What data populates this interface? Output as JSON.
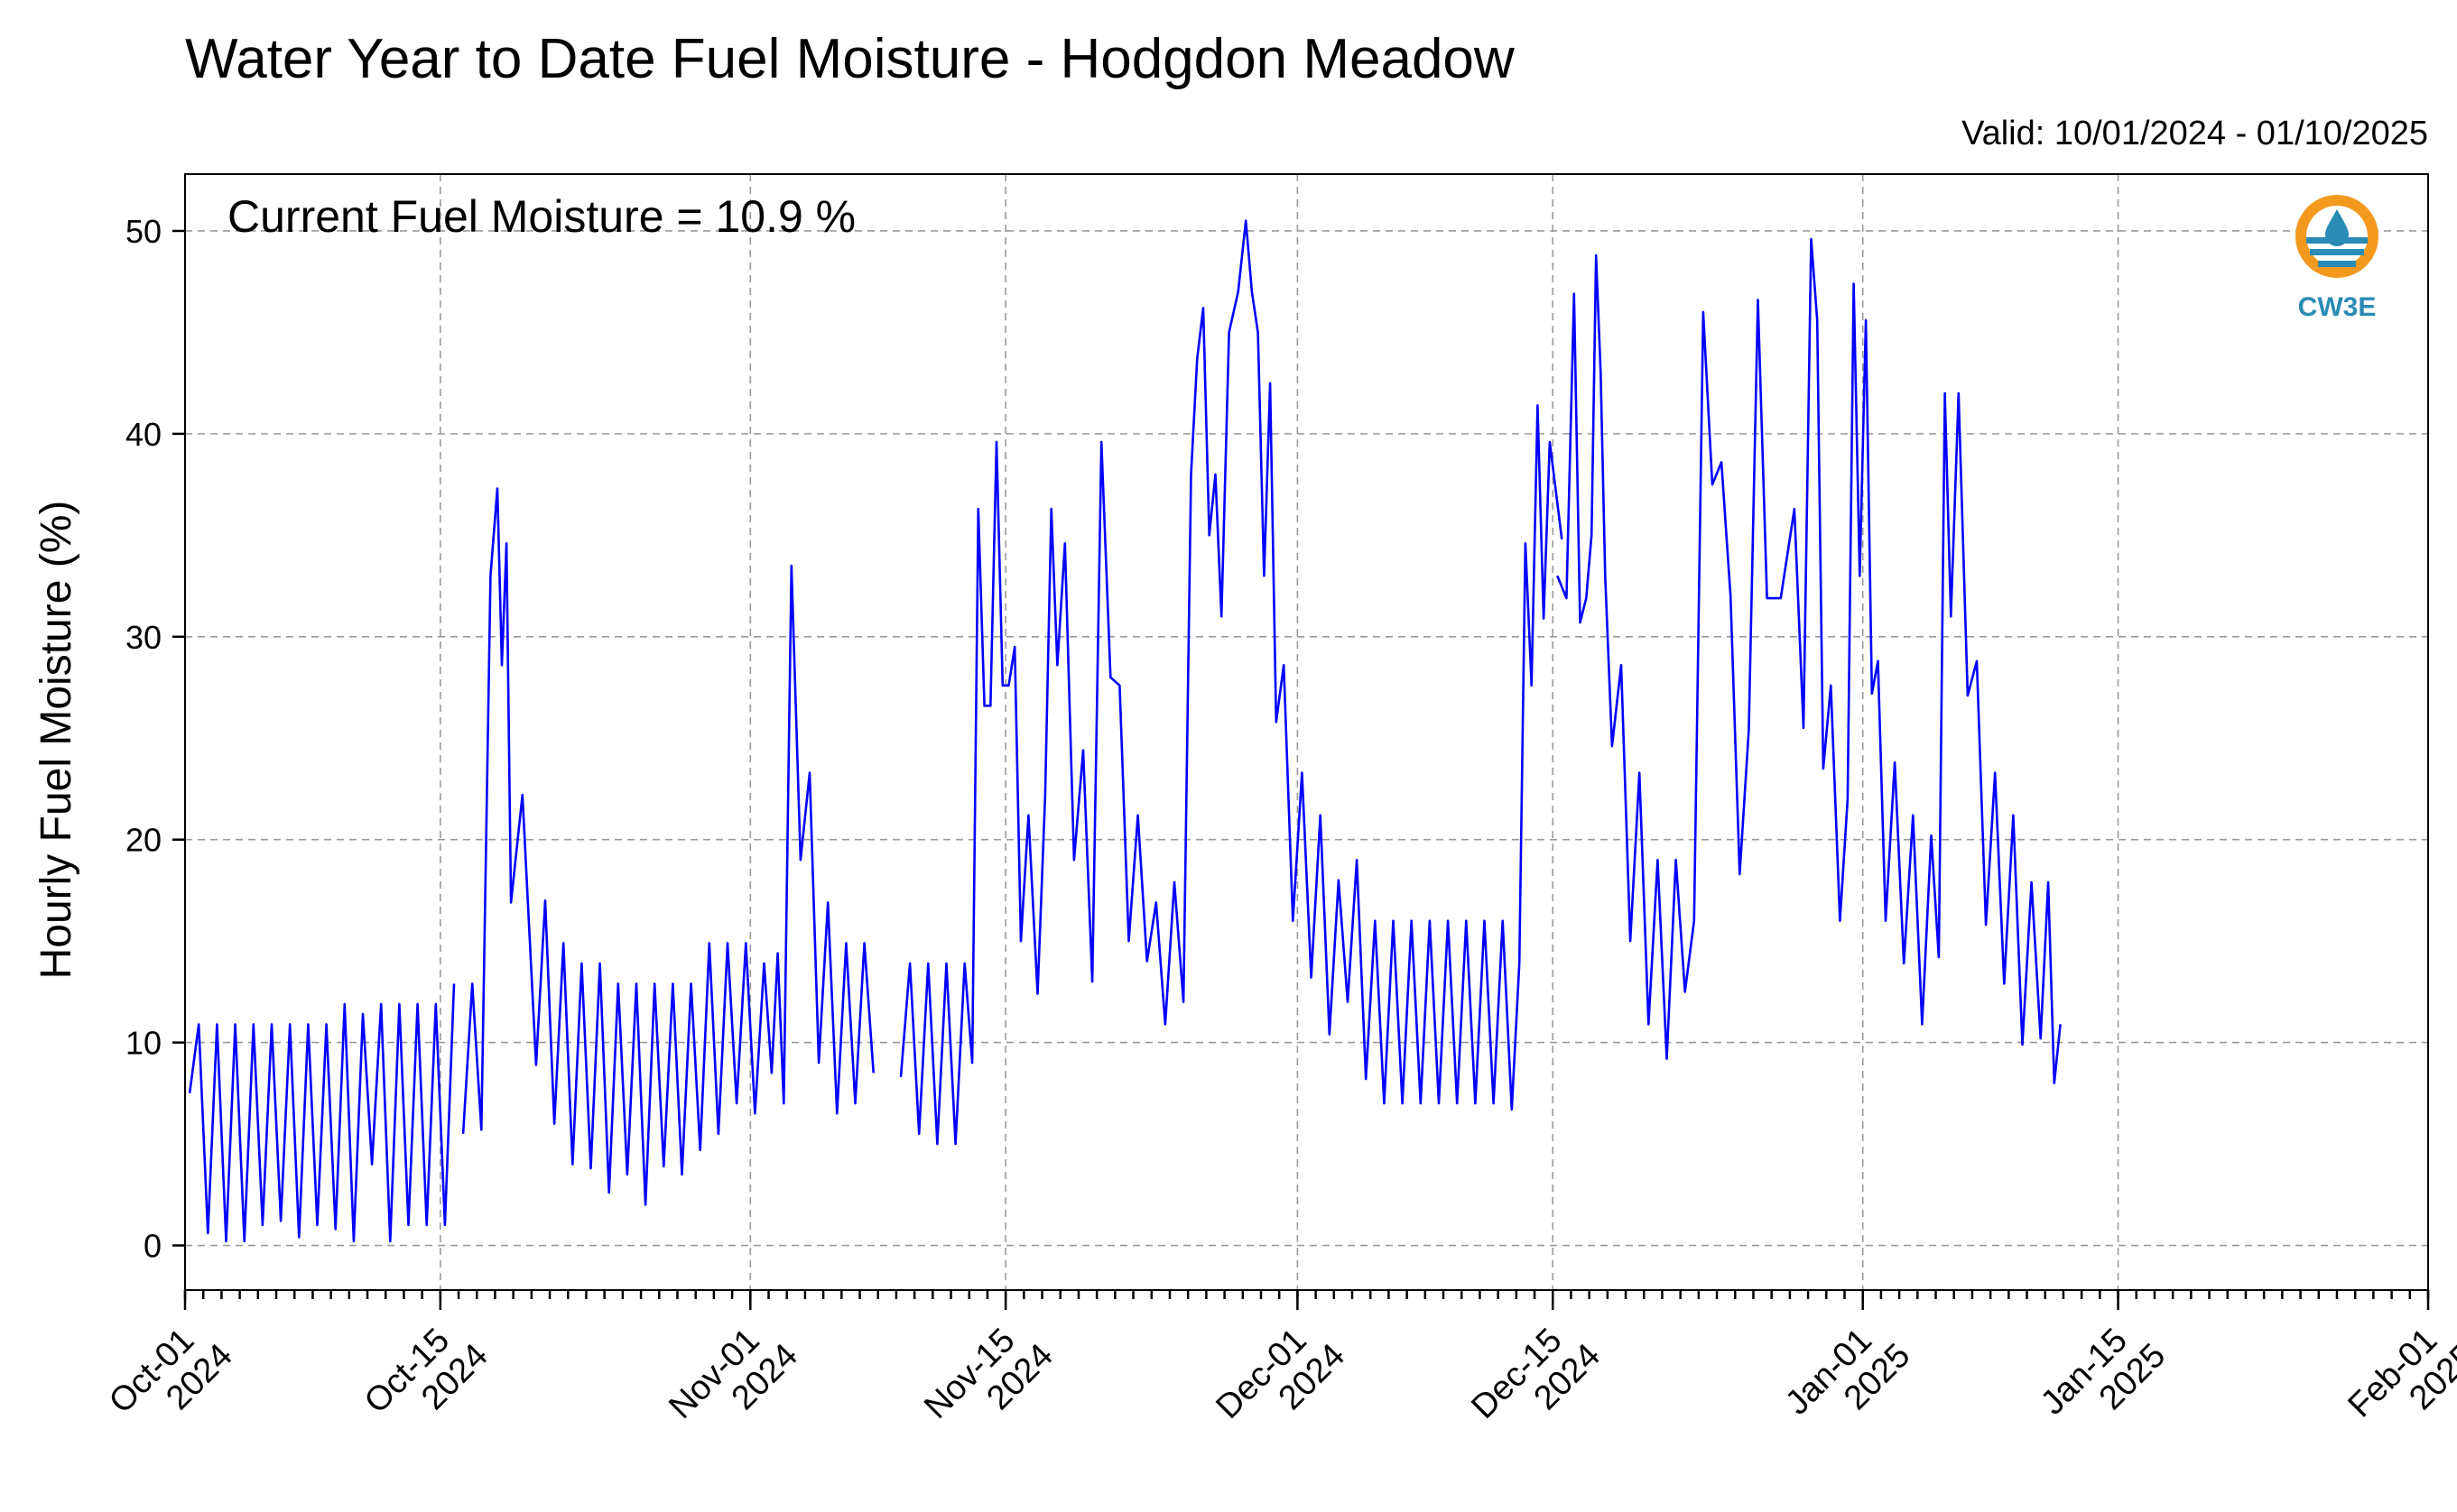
{
  "title": "Water Year to Date Fuel Moisture - Hodgdon Meadow",
  "valid_text": "Valid: 10/01/2024 - 01/10/2025",
  "current_text": "Current Fuel Moisture = 10.9 %",
  "logo": {
    "text": "CW3E",
    "icon": "cw3e-water-drop-logo",
    "ring_color": "#f39a1e",
    "water_color": "#2a8bb5"
  },
  "chart_data": {
    "type": "line",
    "title": "Water Year to Date Fuel Moisture - Hodgdon Meadow",
    "xlabel": "",
    "ylabel": "Hourly Fuel Moisture (%)",
    "xlim": [
      "2024-10-01",
      "2025-02-01"
    ],
    "ylim": [
      -2.2,
      52.8
    ],
    "y_ticks": [
      0,
      10,
      20,
      30,
      40,
      50
    ],
    "x_ticks": [
      {
        "date": "2024-10-01",
        "label": [
          "Oct-01",
          "2024"
        ]
      },
      {
        "date": "2024-10-15",
        "label": [
          "Oct-15",
          "2024"
        ]
      },
      {
        "date": "2024-11-01",
        "label": [
          "Nov-01",
          "2024"
        ]
      },
      {
        "date": "2024-11-15",
        "label": [
          "Nov-15",
          "2024"
        ]
      },
      {
        "date": "2024-12-01",
        "label": [
          "Dec-01",
          "2024"
        ]
      },
      {
        "date": "2024-12-15",
        "label": [
          "Dec-15",
          "2024"
        ]
      },
      {
        "date": "2025-01-01",
        "label": [
          "Jan-01",
          "2025"
        ]
      },
      {
        "date": "2025-01-15",
        "label": [
          "Jan-15",
          "2025"
        ]
      },
      {
        "date": "2025-02-01",
        "label": [
          "Feb-01",
          "2025"
        ]
      }
    ],
    "grid": true,
    "line_color": "#0000ff",
    "series": [
      {
        "values": [
          [
            "2024-10-01",
            7.5
          ],
          [
            "2024-10-01",
            10.9
          ],
          [
            "2024-10-02",
            0.6
          ],
          [
            "2024-10-02",
            10.9
          ],
          [
            "2024-10-03",
            0.2
          ],
          [
            "2024-10-03",
            10.9
          ],
          [
            "2024-10-04",
            0.2
          ],
          [
            "2024-10-04",
            10.9
          ],
          [
            "2024-10-05",
            1.0
          ],
          [
            "2024-10-05",
            10.9
          ],
          [
            "2024-10-06",
            1.2
          ],
          [
            "2024-10-06",
            10.9
          ],
          [
            "2024-10-07",
            0.4
          ],
          [
            "2024-10-07",
            10.9
          ],
          [
            "2024-10-08",
            1.0
          ],
          [
            "2024-10-08",
            10.9
          ],
          [
            "2024-10-09",
            0.8
          ],
          [
            "2024-10-09",
            11.9
          ],
          [
            "2024-10-10",
            0.2
          ],
          [
            "2024-10-10",
            11.4
          ],
          [
            "2024-10-11",
            4.0
          ],
          [
            "2024-10-11",
            11.9
          ],
          [
            "2024-10-12",
            0.2
          ],
          [
            "2024-10-12",
            11.9
          ],
          [
            "2024-10-13",
            1.0
          ],
          [
            "2024-10-13",
            11.9
          ],
          [
            "2024-10-14",
            1.0
          ],
          [
            "2024-10-14",
            11.9
          ],
          [
            "2024-10-15",
            1.0
          ],
          [
            "2024-10-15",
            12.9
          ],
          null,
          [
            "2024-10-16",
            5.5
          ],
          [
            "2024-10-16",
            12.9
          ],
          [
            "2024-10-17",
            5.7
          ],
          [
            "2024-10-17",
            33.0
          ],
          [
            "2024-10-18",
            37.3
          ],
          [
            "2024-10-18",
            28.6
          ],
          [
            "2024-10-18",
            34.6
          ],
          [
            "2024-10-18",
            16.9
          ],
          [
            "2024-10-19",
            22.2
          ],
          [
            "2024-10-20",
            8.9
          ],
          [
            "2024-10-20",
            17.0
          ],
          [
            "2024-10-21",
            6.0
          ],
          [
            "2024-10-21",
            14.9
          ],
          [
            "2024-10-22",
            4.0
          ],
          [
            "2024-10-22",
            13.9
          ],
          [
            "2024-10-23",
            3.8
          ],
          [
            "2024-10-23",
            13.9
          ],
          [
            "2024-10-24",
            2.6
          ],
          [
            "2024-10-24",
            12.9
          ],
          [
            "2024-10-25",
            3.5
          ],
          [
            "2024-10-25",
            12.9
          ],
          [
            "2024-10-26",
            2.0
          ],
          [
            "2024-10-26",
            12.9
          ],
          [
            "2024-10-27",
            3.9
          ],
          [
            "2024-10-27",
            12.9
          ],
          [
            "2024-10-28",
            3.5
          ],
          [
            "2024-10-28",
            12.9
          ],
          [
            "2024-10-29",
            4.7
          ],
          [
            "2024-10-29",
            14.9
          ],
          [
            "2024-10-30",
            5.5
          ],
          [
            "2024-10-30",
            14.9
          ],
          [
            "2024-10-31",
            7.0
          ],
          [
            "2024-10-31",
            14.9
          ],
          [
            "2024-11-01",
            6.5
          ],
          [
            "2024-11-01",
            13.9
          ],
          [
            "2024-11-02",
            8.5
          ],
          [
            "2024-11-02",
            14.4
          ],
          [
            "2024-11-02",
            7.0
          ],
          [
            "2024-11-03",
            33.5
          ],
          [
            "2024-11-03",
            19.0
          ],
          [
            "2024-11-04",
            23.3
          ],
          [
            "2024-11-04",
            9.0
          ],
          [
            "2024-11-05",
            16.9
          ],
          [
            "2024-11-05",
            6.5
          ],
          [
            "2024-11-06",
            14.9
          ],
          [
            "2024-11-06",
            7.0
          ],
          [
            "2024-11-07",
            14.9
          ],
          [
            "2024-11-07",
            8.5
          ],
          null,
          [
            "2024-11-09",
            8.3
          ],
          [
            "2024-11-09",
            13.9
          ],
          [
            "2024-11-10",
            5.5
          ],
          [
            "2024-11-10",
            13.9
          ],
          [
            "2024-11-11",
            5.0
          ],
          [
            "2024-11-11",
            13.9
          ],
          [
            "2024-11-12",
            5.0
          ],
          [
            "2024-11-12",
            13.9
          ],
          [
            "2024-11-13",
            9.0
          ],
          [
            "2024-11-13",
            36.3
          ],
          [
            "2024-11-13",
            26.6
          ],
          [
            "2024-11-14",
            26.6
          ],
          [
            "2024-11-14",
            39.6
          ],
          [
            "2024-11-14",
            27.6
          ],
          [
            "2024-11-15",
            27.6
          ],
          [
            "2024-11-15",
            29.5
          ],
          [
            "2024-11-15",
            15.0
          ],
          [
            "2024-11-16",
            21.2
          ],
          [
            "2024-11-16",
            12.4
          ],
          [
            "2024-11-17",
            22.2
          ],
          [
            "2024-11-17",
            36.3
          ],
          [
            "2024-11-17",
            28.6
          ],
          [
            "2024-11-18",
            34.6
          ],
          [
            "2024-11-18",
            19.0
          ],
          [
            "2024-11-19",
            24.4
          ],
          [
            "2024-11-19",
            13.0
          ],
          [
            "2024-11-20",
            39.6
          ],
          [
            "2024-11-20",
            28.0
          ],
          [
            "2024-11-21",
            27.6
          ],
          [
            "2024-11-21",
            15.0
          ],
          [
            "2024-11-22",
            21.2
          ],
          [
            "2024-11-22",
            14.0
          ],
          [
            "2024-11-23",
            16.9
          ],
          [
            "2024-11-23",
            10.9
          ],
          [
            "2024-11-24",
            17.9
          ],
          [
            "2024-11-24",
            12.0
          ],
          [
            "2024-11-25",
            38.0
          ],
          [
            "2024-11-25",
            43.7
          ],
          [
            "2024-11-25",
            46.2
          ],
          [
            "2024-11-26",
            35.0
          ],
          [
            "2024-11-26",
            38.0
          ],
          [
            "2024-11-26",
            31.0
          ],
          [
            "2024-11-27",
            45.0
          ],
          [
            "2024-11-27",
            47.0
          ],
          [
            "2024-11-28",
            50.5
          ],
          [
            "2024-11-28",
            47.0
          ],
          [
            "2024-11-28",
            45.0
          ],
          [
            "2024-11-29",
            33.0
          ],
          [
            "2024-11-29",
            42.5
          ],
          [
            "2024-11-29",
            25.8
          ],
          [
            "2024-11-30",
            28.6
          ],
          [
            "2024-11-30",
            16.0
          ],
          [
            "2024-12-01",
            23.3
          ],
          [
            "2024-12-01",
            13.2
          ],
          [
            "2024-12-02",
            21.2
          ],
          [
            "2024-12-02",
            10.4
          ],
          [
            "2024-12-03",
            18.0
          ],
          [
            "2024-12-03",
            12.0
          ],
          [
            "2024-12-04",
            19.0
          ],
          [
            "2024-12-04",
            8.2
          ],
          [
            "2024-12-05",
            16.0
          ],
          [
            "2024-12-05",
            7.0
          ],
          [
            "2024-12-06",
            16.0
          ],
          [
            "2024-12-06",
            7.0
          ],
          [
            "2024-12-07",
            16.0
          ],
          [
            "2024-12-07",
            7.0
          ],
          [
            "2024-12-08",
            16.0
          ],
          [
            "2024-12-08",
            7.0
          ],
          [
            "2024-12-09",
            16.0
          ],
          [
            "2024-12-09",
            7.0
          ],
          [
            "2024-12-10",
            16.0
          ],
          [
            "2024-12-10",
            7.0
          ],
          [
            "2024-12-11",
            16.0
          ],
          [
            "2024-12-11",
            7.0
          ],
          [
            "2024-12-12",
            16.0
          ],
          [
            "2024-12-12",
            6.7
          ],
          [
            "2024-12-13",
            13.9
          ],
          [
            "2024-12-13",
            34.6
          ],
          [
            "2024-12-13",
            27.6
          ],
          [
            "2024-12-14",
            41.4
          ],
          [
            "2024-12-14",
            30.9
          ],
          [
            "2024-12-14",
            39.6
          ],
          [
            "2024-12-15",
            34.8
          ],
          null,
          [
            "2024-12-15",
            33.0
          ],
          [
            "2024-12-15",
            31.9
          ],
          [
            "2024-12-16",
            46.9
          ],
          [
            "2024-12-16",
            30.7
          ],
          [
            "2024-12-16",
            31.9
          ],
          [
            "2024-12-17",
            35.0
          ],
          [
            "2024-12-17",
            48.8
          ],
          [
            "2024-12-17",
            43.0
          ],
          [
            "2024-12-17",
            33.0
          ],
          [
            "2024-12-18",
            24.6
          ],
          [
            "2024-12-18",
            28.6
          ],
          [
            "2024-12-19",
            15.0
          ],
          [
            "2024-12-19",
            23.3
          ],
          [
            "2024-12-20",
            10.9
          ],
          [
            "2024-12-20",
            19.0
          ],
          [
            "2024-12-21",
            9.2
          ],
          [
            "2024-12-21",
            19.0
          ],
          [
            "2024-12-22",
            12.5
          ],
          [
            "2024-12-22",
            16.0
          ],
          [
            "2024-12-23",
            46.0
          ],
          [
            "2024-12-23",
            37.5
          ],
          [
            "2024-12-24",
            38.6
          ],
          [
            "2024-12-24",
            32.0
          ],
          [
            "2024-12-25",
            18.3
          ],
          [
            "2024-12-25",
            25.4
          ],
          [
            "2024-12-26",
            46.6
          ],
          [
            "2024-12-26",
            31.9
          ],
          [
            "2024-12-27",
            31.9
          ],
          [
            "2024-12-28",
            36.3
          ],
          [
            "2024-12-28",
            25.5
          ],
          [
            "2024-12-29",
            49.6
          ],
          [
            "2024-12-29",
            45.6
          ],
          [
            "2024-12-29",
            23.5
          ],
          [
            "2024-12-30",
            27.6
          ],
          [
            "2024-12-30",
            16.0
          ],
          [
            "2024-12-31",
            22.0
          ],
          [
            "2024-12-31",
            47.4
          ],
          [
            "2024-12-31",
            33.0
          ],
          [
            "2025-01-01",
            45.6
          ],
          [
            "2025-01-01",
            27.2
          ],
          [
            "2025-01-01",
            28.8
          ],
          [
            "2025-01-02",
            16.0
          ],
          [
            "2025-01-02",
            23.8
          ],
          [
            "2025-01-03",
            13.9
          ],
          [
            "2025-01-03",
            21.2
          ],
          [
            "2025-01-04",
            10.9
          ],
          [
            "2025-01-04",
            20.2
          ],
          [
            "2025-01-05",
            14.2
          ],
          [
            "2025-01-05",
            42.0
          ],
          [
            "2025-01-05",
            31.0
          ],
          [
            "2025-01-06",
            42.0
          ],
          [
            "2025-01-06",
            27.1
          ],
          [
            "2025-01-07",
            28.8
          ],
          [
            "2025-01-07",
            15.8
          ],
          [
            "2025-01-08",
            23.3
          ],
          [
            "2025-01-08",
            12.9
          ],
          [
            "2025-01-09",
            21.2
          ],
          [
            "2025-01-09",
            9.9
          ],
          [
            "2025-01-10",
            17.9
          ],
          [
            "2025-01-10",
            10.2
          ],
          [
            "2025-01-11",
            17.9
          ],
          [
            "2025-01-11",
            8.0
          ],
          [
            "2025-01-11",
            10.9
          ]
        ]
      }
    ]
  }
}
